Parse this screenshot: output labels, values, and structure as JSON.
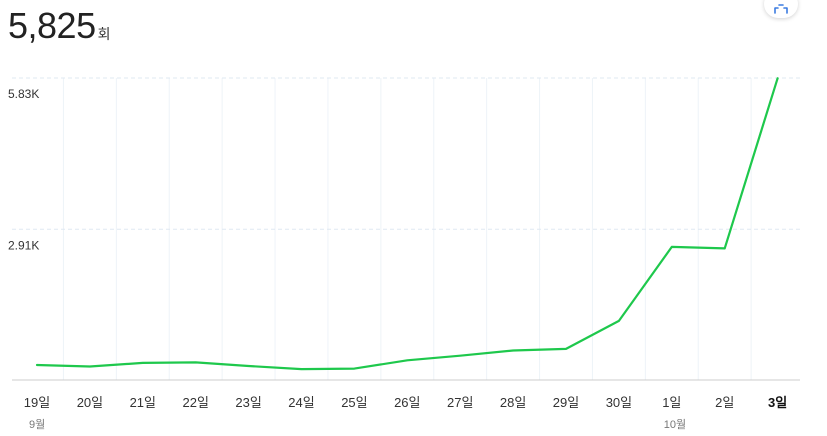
{
  "summary": {
    "value": "5,825",
    "unit": "회"
  },
  "toolbar": {
    "expand_icon": "expand-icon"
  },
  "colors": {
    "line": "#1ec84c",
    "grid": "#dfe8f2",
    "text": "#333333",
    "axis": "#cccccc"
  },
  "chart_data": {
    "type": "line",
    "categories": [
      "19일",
      "20일",
      "21일",
      "22일",
      "23일",
      "24일",
      "25일",
      "26일",
      "27일",
      "28일",
      "29일",
      "30일",
      "1일",
      "2일",
      "3일"
    ],
    "month_labels": [
      {
        "index": 0,
        "label": "9월"
      },
      {
        "index": 12,
        "label": "10월"
      }
    ],
    "series": [
      {
        "values": [
          290,
          260,
          330,
          340,
          270,
          210,
          220,
          380,
          470,
          570,
          600,
          1140,
          2570,
          2540,
          5825
        ]
      }
    ],
    "y_ticks": [
      {
        "value": 2910,
        "label": "2.91K"
      },
      {
        "value": 5830,
        "label": "5.83K"
      }
    ],
    "ylim": [
      0,
      5830
    ],
    "grid": true,
    "legend": "none",
    "highlight_category": "3일"
  }
}
